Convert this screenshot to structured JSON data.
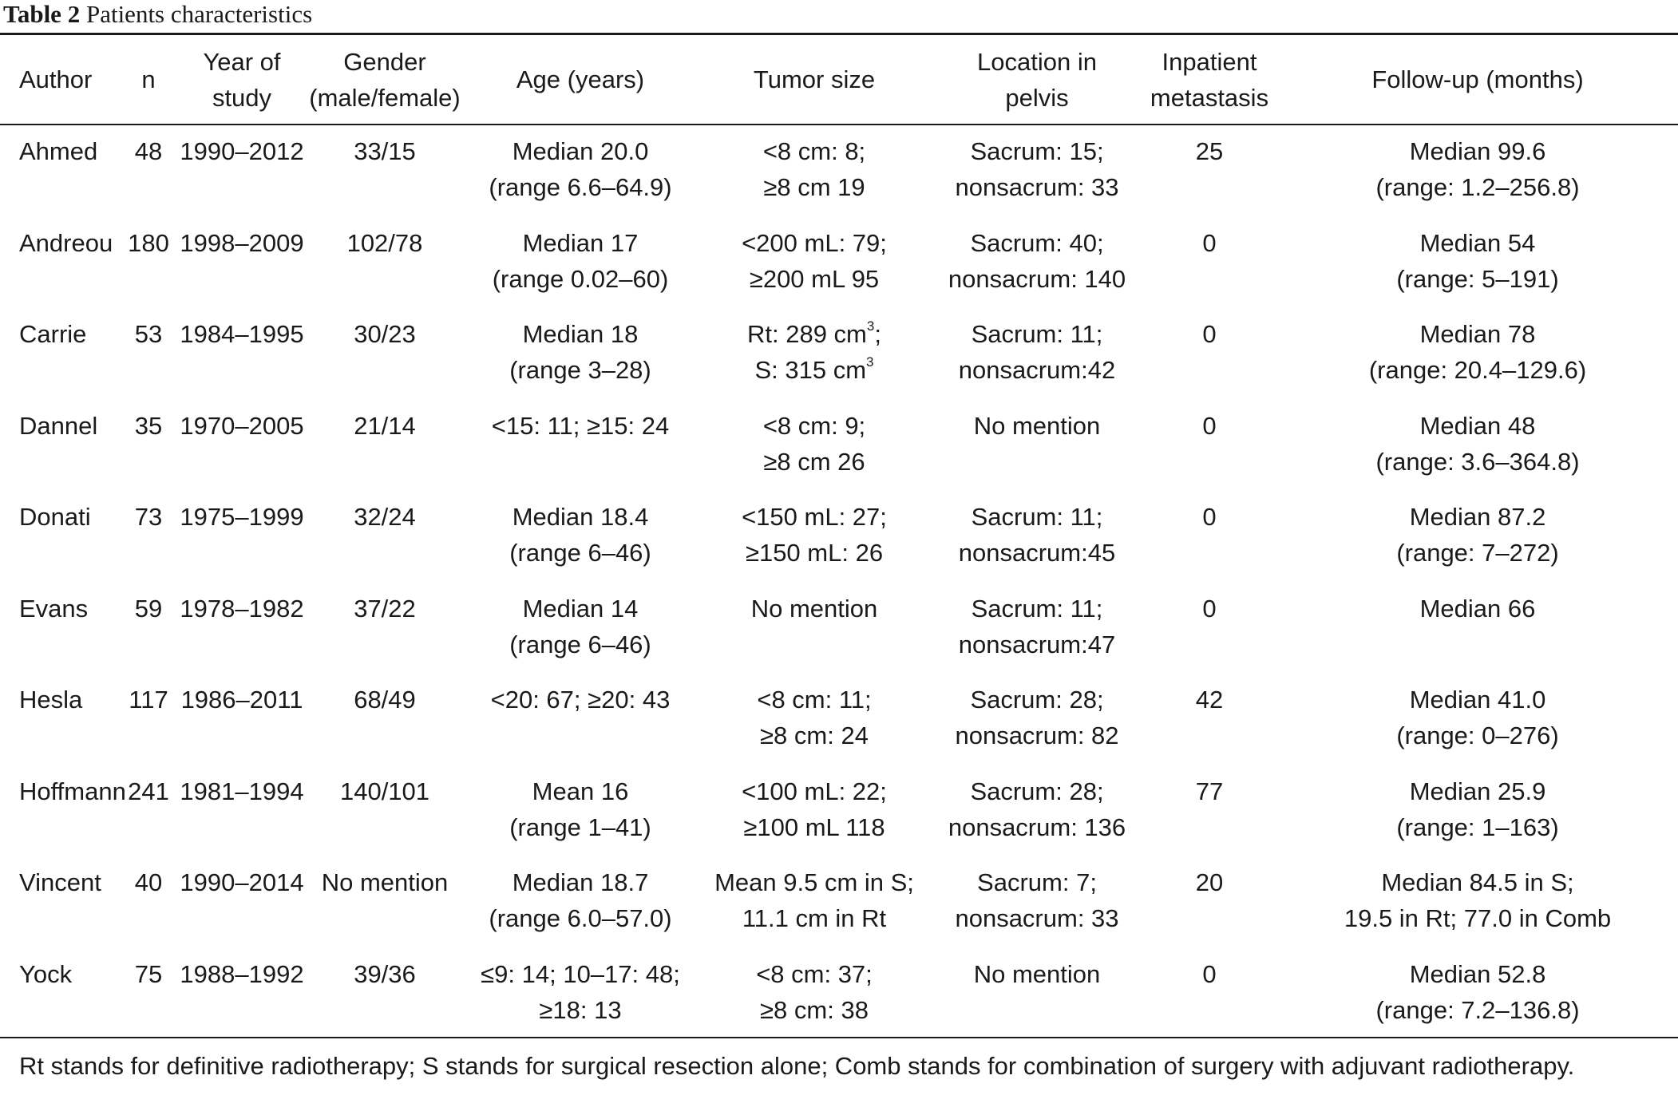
{
  "caption": {
    "label": "Table 2",
    "title": "Patients characteristics"
  },
  "columns": [
    [
      "Author"
    ],
    [
      "n"
    ],
    [
      "Year of",
      "study"
    ],
    [
      "Gender",
      "(male/female)"
    ],
    [
      "Age (years)"
    ],
    [
      "Tumor size"
    ],
    [
      "Location in",
      "pelvis"
    ],
    [
      "Inpatient",
      "metastasis"
    ],
    [
      "Follow-up (months)"
    ]
  ],
  "rows": [
    {
      "author": "Ahmed",
      "n": "48",
      "years": "1990–2012",
      "gender": "33/15",
      "age": [
        "Median 20.0",
        "(range 6.6–64.9)"
      ],
      "tumor": [
        "<8 cm: 8;",
        "≥8 cm 19"
      ],
      "location": [
        "Sacrum: 15;",
        "nonsacrum: 33"
      ],
      "metastasis": "25",
      "followup": [
        "Median 99.6",
        "(range: 1.2–256.8)"
      ]
    },
    {
      "author": "Andreou",
      "n": "180",
      "years": "1998–2009",
      "gender": "102/78",
      "age": [
        "Median 17",
        "(range 0.02–60)"
      ],
      "tumor": [
        "<200 mL: 79;",
        "≥200 mL 95"
      ],
      "location": [
        "Sacrum: 40;",
        "nonsacrum: 140"
      ],
      "metastasis": "0",
      "followup": [
        "Median 54",
        "(range: 5–191)"
      ]
    },
    {
      "author": "Carrie",
      "n": "53",
      "years": "1984–1995",
      "gender": "30/23",
      "age": [
        "Median 18",
        "(range 3–28)"
      ],
      "tumor": [
        "Rt: 289 cm",
        "S: 315 cm"
      ],
      "tumor_sup": [
        "3",
        "3"
      ],
      "tumor_tail": [
        ";",
        ""
      ],
      "location": [
        "Sacrum: 11;",
        "nonsacrum:42"
      ],
      "metastasis": "0",
      "followup": [
        "Median 78",
        "(range: 20.4–129.6)"
      ]
    },
    {
      "author": "Dannel",
      "n": "35",
      "years": "1970–2005",
      "gender": "21/14",
      "age": [
        "<15: 11; ≥15: 24"
      ],
      "tumor": [
        "<8 cm: 9;",
        "≥8 cm 26"
      ],
      "location": [
        "No mention"
      ],
      "metastasis": "0",
      "followup": [
        "Median 48",
        "(range: 3.6–364.8)"
      ]
    },
    {
      "author": "Donati",
      "n": "73",
      "years": "1975–1999",
      "gender": "32/24",
      "age": [
        "Median 18.4",
        "(range 6–46)"
      ],
      "tumor": [
        "<150 mL: 27;",
        "≥150 mL: 26"
      ],
      "location": [
        "Sacrum: 11;",
        "nonsacrum:45"
      ],
      "metastasis": "0",
      "followup": [
        "Median 87.2",
        "(range: 7–272)"
      ]
    },
    {
      "author": "Evans",
      "n": "59",
      "years": "1978–1982",
      "gender": "37/22",
      "age": [
        "Median 14",
        "(range 6–46)"
      ],
      "tumor": [
        "No mention"
      ],
      "location": [
        "Sacrum: 11;",
        "nonsacrum:47"
      ],
      "metastasis": "0",
      "followup": [
        "Median 66"
      ]
    },
    {
      "author": "Hesla",
      "n": "117",
      "years": "1986–2011",
      "gender": "68/49",
      "age": [
        "<20: 67; ≥20: 43"
      ],
      "tumor": [
        "<8 cm: 11;",
        "≥8 cm: 24"
      ],
      "location": [
        "Sacrum: 28;",
        "nonsacrum: 82"
      ],
      "metastasis": "42",
      "followup": [
        "Median 41.0",
        "(range: 0–276)"
      ]
    },
    {
      "author": "Hoffmann",
      "n": "241",
      "years": "1981–1994",
      "gender": "140/101",
      "age": [
        "Mean 16",
        "(range 1–41)"
      ],
      "tumor": [
        "<100 mL: 22;",
        "≥100 mL 118"
      ],
      "location": [
        "Sacrum: 28;",
        "nonsacrum: 136"
      ],
      "metastasis": "77",
      "followup": [
        "Median 25.9",
        "(range: 1–163)"
      ]
    },
    {
      "author": "Vincent",
      "n": "40",
      "years": "1990–2014",
      "gender": "No mention",
      "age": [
        "Median 18.7",
        "(range 6.0–57.0)"
      ],
      "tumor": [
        "Mean 9.5 cm in S;",
        "11.1 cm in Rt"
      ],
      "location": [
        "Sacrum: 7;",
        "nonsacrum: 33"
      ],
      "metastasis": "20",
      "followup": [
        "Median 84.5 in S;",
        "19.5 in Rt; 77.0 in Comb"
      ]
    },
    {
      "author": "Yock",
      "n": "75",
      "years": "1988–1992",
      "gender": "39/36",
      "age": [
        "≤9: 14; 10–17: 48;",
        "≥18: 13"
      ],
      "tumor": [
        "<8 cm: 37;",
        "≥8 cm: 38"
      ],
      "location": [
        "No mention"
      ],
      "metastasis": "0",
      "followup": [
        "Median 52.8",
        "(range: 7.2–136.8)"
      ]
    }
  ],
  "footnote": "Rt stands for definitive radiotherapy; S stands for surgical resection alone; Comb stands for combination of surgery with adjuvant radiotherapy."
}
